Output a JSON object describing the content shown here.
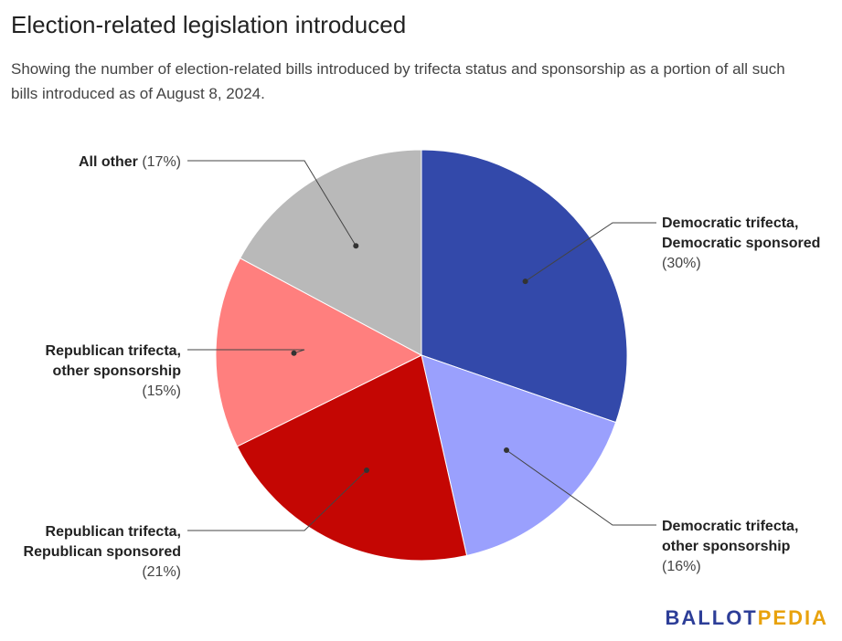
{
  "title": "Election-related legislation introduced",
  "subtitle": "Showing the number of election-related bills introduced by trifecta status and sponsorship as a portion of all such bills introduced as of August 8, 2024.",
  "logo": {
    "part1": "BALLOT",
    "part2": "PEDIA",
    "color1": "#2d3e98",
    "color2": "#e8a20d"
  },
  "chart_data": {
    "type": "pie",
    "title": "Election-related legislation introduced",
    "slices": [
      {
        "label_lines": [
          "Democratic trifecta,",
          "Democratic sponsored"
        ],
        "pct_label": "(30%)",
        "value": 30,
        "color": "#3349aa"
      },
      {
        "label_lines": [
          "Democratic trifecta,",
          "other sponsorship"
        ],
        "pct_label": "(16%)",
        "value": 16,
        "color": "#9aa0fd"
      },
      {
        "label_lines": [
          "Republican trifecta,",
          "Republican sponsored"
        ],
        "pct_label": "(21%)",
        "value": 21,
        "color": "#c40603"
      },
      {
        "label_lines": [
          "Republican trifecta,",
          "other sponsorship"
        ],
        "pct_label": "(15%)",
        "value": 15,
        "color": "#ff7f7e"
      },
      {
        "label_lines": [
          "All other"
        ],
        "pct_label": "(17%)",
        "value": 17,
        "color": "#b9b9b9"
      }
    ]
  }
}
